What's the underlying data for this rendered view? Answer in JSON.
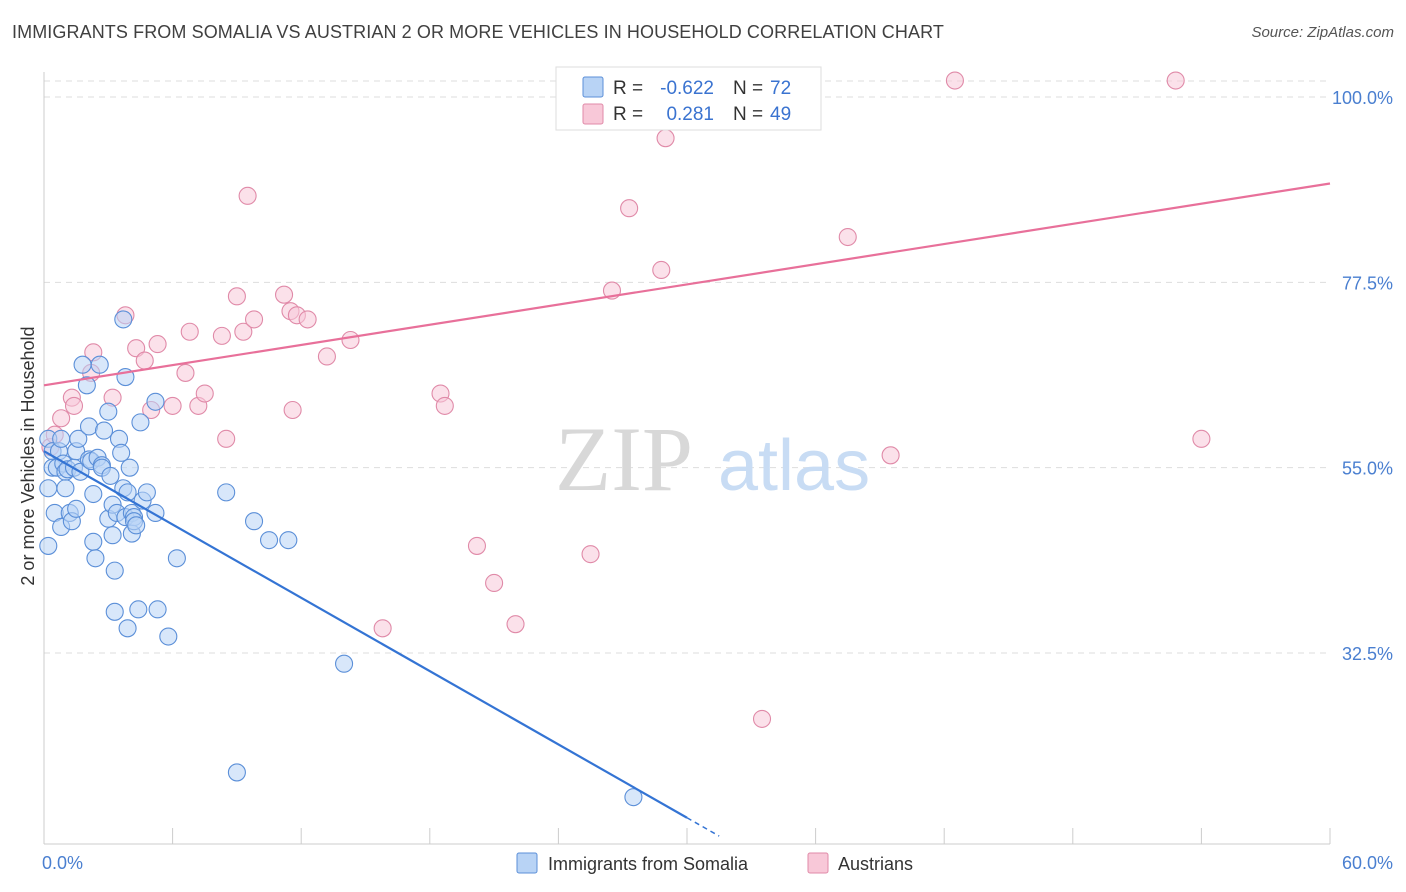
{
  "header": {
    "title": "IMMIGRANTS FROM SOMALIA VS AUSTRIAN 2 OR MORE VEHICLES IN HOUSEHOLD CORRELATION CHART",
    "source": "Source: ZipAtlas.com"
  },
  "watermark": {
    "zip": "ZIP",
    "atlas": "atlas"
  },
  "colors": {
    "blue_fill": "#b8d3f5",
    "blue_stroke": "#5b8fd8",
    "blue_line": "#3474d4",
    "pink_fill": "#f8c8d8",
    "pink_stroke": "#e08aa8",
    "pink_line": "#e8709a",
    "tick_label": "#4a7fd0",
    "grid": "#dddddd"
  },
  "legend": {
    "rows": [
      {
        "r_label": "R =",
        "r_value": "-0.622",
        "n_label": "N =",
        "n_value": "72"
      },
      {
        "r_label": "R =",
        "r_value": "0.281",
        "n_label": "N =",
        "n_value": "49"
      }
    ]
  },
  "chart_data": {
    "type": "scatter",
    "title": "IMMIGRANTS FROM SOMALIA VS AUSTRIAN 2 OR MORE VEHICLES IN HOUSEHOLD CORRELATION CHART",
    "xlabel": "",
    "ylabel": "2 or more Vehicles in Household",
    "xlim": [
      0,
      60
    ],
    "ylim": [
      10,
      102
    ],
    "x_tick_labels": [
      "0.0%",
      "60.0%"
    ],
    "y_ticks": [
      32.5,
      55.0,
      77.5,
      100.0
    ],
    "y_tick_labels": [
      "32.5%",
      "55.0%",
      "77.5%",
      "100.0%"
    ],
    "grid": true,
    "legend_placement": "bottom",
    "series": [
      {
        "name": "Immigrants from Somalia",
        "color": "#5b8fd8",
        "points": [
          [
            0.2,
            58.5
          ],
          [
            0.2,
            52.5
          ],
          [
            0.2,
            45.5
          ],
          [
            0.4,
            57
          ],
          [
            0.4,
            55
          ],
          [
            0.5,
            49.5
          ],
          [
            0.6,
            55
          ],
          [
            0.7,
            57
          ],
          [
            0.8,
            58.5
          ],
          [
            0.8,
            47.8
          ],
          [
            0.9,
            55.5
          ],
          [
            1.0,
            54.5
          ],
          [
            1.0,
            52.5
          ],
          [
            1.1,
            54.8
          ],
          [
            1.2,
            49.5
          ],
          [
            1.3,
            48.5
          ],
          [
            1.4,
            55
          ],
          [
            1.5,
            50
          ],
          [
            1.5,
            57
          ],
          [
            1.6,
            58.5
          ],
          [
            1.7,
            54.5
          ],
          [
            1.8,
            67.5
          ],
          [
            2.0,
            65
          ],
          [
            2.1,
            56
          ],
          [
            2.1,
            60
          ],
          [
            2.2,
            55.8
          ],
          [
            2.3,
            46
          ],
          [
            2.3,
            51.8
          ],
          [
            2.4,
            44
          ],
          [
            2.5,
            56.2
          ],
          [
            2.6,
            67.5
          ],
          [
            2.7,
            55.3
          ],
          [
            2.7,
            55
          ],
          [
            2.8,
            59.5
          ],
          [
            3.0,
            48.8
          ],
          [
            3.0,
            61.8
          ],
          [
            3.1,
            54
          ],
          [
            3.2,
            46.8
          ],
          [
            3.2,
            50.5
          ],
          [
            3.3,
            42.5
          ],
          [
            3.3,
            37.5
          ],
          [
            3.4,
            49.5
          ],
          [
            3.5,
            58.5
          ],
          [
            3.6,
            56.8
          ],
          [
            3.7,
            52.5
          ],
          [
            3.8,
            49
          ],
          [
            3.9,
            35.5
          ],
          [
            3.7,
            73
          ],
          [
            3.8,
            66
          ],
          [
            3.9,
            52
          ],
          [
            4.0,
            55
          ],
          [
            4.1,
            47
          ],
          [
            4.1,
            49.5
          ],
          [
            4.2,
            49
          ],
          [
            4.2,
            48.5
          ],
          [
            4.3,
            48
          ],
          [
            4.4,
            37.8
          ],
          [
            4.5,
            60.5
          ],
          [
            4.6,
            51
          ],
          [
            4.8,
            52
          ],
          [
            5.2,
            49.5
          ],
          [
            5.3,
            37.8
          ],
          [
            5.2,
            63
          ],
          [
            5.8,
            34.5
          ],
          [
            6.2,
            44
          ],
          [
            8.5,
            52
          ],
          [
            9.0,
            18
          ],
          [
            9.8,
            48.5
          ],
          [
            10.5,
            46.2
          ],
          [
            11.4,
            46.2
          ],
          [
            14.0,
            31.2
          ],
          [
            27.5,
            15
          ]
        ],
        "trend": {
          "x": [
            0,
            30
          ],
          "y": [
            57,
            12.5
          ]
        }
      },
      {
        "name": "Austrians",
        "color": "#e08aa8",
        "points": [
          [
            0.3,
            57.5
          ],
          [
            0.5,
            59
          ],
          [
            0.8,
            61
          ],
          [
            1.3,
            63.5
          ],
          [
            1.4,
            62.5
          ],
          [
            2.2,
            66.5
          ],
          [
            2.3,
            69
          ],
          [
            3.2,
            63.5
          ],
          [
            3.8,
            73.5
          ],
          [
            4.3,
            69.5
          ],
          [
            4.7,
            68
          ],
          [
            5.0,
            62
          ],
          [
            5.3,
            70
          ],
          [
            6.0,
            62.5
          ],
          [
            6.6,
            66.5
          ],
          [
            6.8,
            71.5
          ],
          [
            7.2,
            62.5
          ],
          [
            7.5,
            64
          ],
          [
            8.3,
            71
          ],
          [
            8.5,
            58.5
          ],
          [
            9.0,
            75.8
          ],
          [
            9.3,
            71.5
          ],
          [
            9.5,
            88
          ],
          [
            9.8,
            73
          ],
          [
            11.2,
            76
          ],
          [
            11.5,
            74
          ],
          [
            11.6,
            62
          ],
          [
            11.8,
            73.5
          ],
          [
            12.3,
            73
          ],
          [
            13.2,
            68.5
          ],
          [
            14.3,
            70.5
          ],
          [
            15.8,
            35.5
          ],
          [
            18.5,
            64
          ],
          [
            18.7,
            62.5
          ],
          [
            20.2,
            45.5
          ],
          [
            22.0,
            36
          ],
          [
            25.5,
            44.5
          ],
          [
            21.0,
            41
          ],
          [
            26.5,
            76.5
          ],
          [
            27.3,
            86.5
          ],
          [
            28.8,
            79
          ],
          [
            29.0,
            95
          ],
          [
            32.0,
            102
          ],
          [
            33.5,
            24.5
          ],
          [
            37.5,
            83
          ],
          [
            39.5,
            56.5
          ],
          [
            42.5,
            102
          ],
          [
            52.8,
            102
          ],
          [
            54.0,
            58.5
          ]
        ],
        "trend": {
          "x": [
            0,
            60
          ],
          "y": [
            65,
            89.5
          ]
        }
      }
    ]
  },
  "bottom_legend": {
    "items": [
      {
        "label": "Immigrants from Somalia"
      },
      {
        "label": "Austrians"
      }
    ]
  }
}
